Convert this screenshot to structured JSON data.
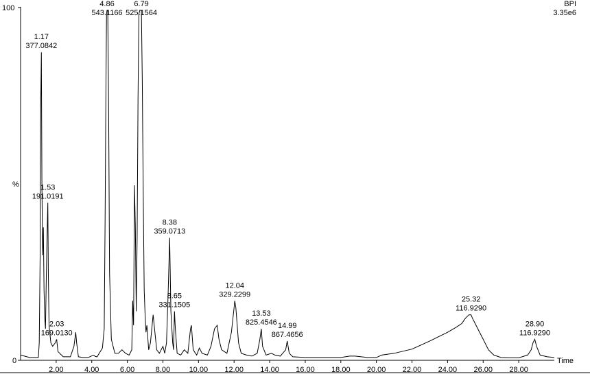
{
  "chart_data": {
    "type": "line",
    "trace_label": "BPI",
    "intensity_label": "3.35e6",
    "xlabel": "Time",
    "ylabel": "%",
    "xlim": [
      0.0,
      30.0
    ],
    "ylim": [
      0,
      100
    ],
    "x_ticks": [
      2,
      4,
      6,
      8,
      10,
      12,
      14,
      16,
      18,
      20,
      22,
      24,
      26,
      28
    ],
    "x_tick_labels": [
      "2.00",
      "4.00",
      "6.00",
      "8.00",
      "10.00",
      "12.00",
      "14.00",
      "16.00",
      "18.00",
      "20.00",
      "22.00",
      "24.00",
      "26.00",
      "28.00"
    ],
    "y_tick_labels": [
      "0",
      "%",
      "100"
    ],
    "peaks": [
      {
        "time": 1.17,
        "intensity": 88,
        "label_time": "1.17",
        "label_mz": "377.0842"
      },
      {
        "time": 1.53,
        "intensity": 45,
        "label_time": "1.53",
        "label_mz": "191.0191"
      },
      {
        "time": 2.03,
        "intensity": 6,
        "label_time": "2.03",
        "label_mz": "169.0130"
      },
      {
        "time": 4.86,
        "intensity": 100,
        "label_time": "4.86",
        "label_mz": "543.1166"
      },
      {
        "time": 6.79,
        "intensity": 100,
        "label_time": "6.79",
        "label_mz": "525.1564"
      },
      {
        "time": 8.38,
        "intensity": 35,
        "label_time": "8.38",
        "label_mz": "359.0713"
      },
      {
        "time": 8.65,
        "intensity": 14,
        "label_time": "8.65",
        "label_mz": "331.1505"
      },
      {
        "time": 12.04,
        "intensity": 17,
        "label_time": "12.04",
        "label_mz": "329.2299"
      },
      {
        "time": 13.53,
        "intensity": 9,
        "label_time": "13.53",
        "label_mz": "825.4546"
      },
      {
        "time": 14.99,
        "intensity": 5.5,
        "label_time": "14.99",
        "label_mz": "867.4656"
      },
      {
        "time": 25.32,
        "intensity": 13,
        "label_time": "25.32",
        "label_mz": "116.9290"
      },
      {
        "time": 28.9,
        "intensity": 6,
        "label_time": "28.90",
        "label_mz": "116.9290"
      }
    ],
    "series": [
      {
        "x": [
          0.0,
          0.5,
          1.0,
          1.05,
          1.1,
          1.13,
          1.17,
          1.2,
          1.24,
          1.28,
          1.32,
          1.36,
          1.4,
          1.45,
          1.5,
          1.53,
          1.56,
          1.6,
          1.7,
          1.8,
          1.95,
          2.03,
          2.1,
          2.4,
          2.8,
          3.0,
          3.1,
          3.15,
          3.25,
          3.5,
          3.8,
          4.1,
          4.2,
          4.3,
          4.6,
          4.7,
          4.75,
          4.8,
          4.83,
          4.86,
          4.9,
          4.95,
          5.0,
          5.1,
          5.3,
          5.5,
          5.7,
          5.9,
          6.1,
          6.25,
          6.3,
          6.35,
          6.4,
          6.45,
          6.5,
          6.55,
          6.6,
          6.65,
          6.7,
          6.75,
          6.79,
          6.84,
          6.9,
          6.95,
          7.0,
          7.05,
          7.1,
          7.2,
          7.3,
          7.45,
          7.55,
          7.65,
          7.8,
          8.0,
          8.1,
          8.2,
          8.3,
          8.38,
          8.45,
          8.55,
          8.6,
          8.65,
          8.7,
          8.8,
          9.0,
          9.2,
          9.4,
          9.55,
          9.6,
          9.7,
          9.9,
          10.05,
          10.2,
          10.5,
          10.7,
          10.9,
          11.05,
          11.15,
          11.3,
          11.6,
          11.85,
          12.0,
          12.04,
          12.1,
          12.25,
          12.4,
          12.7,
          13.0,
          13.3,
          13.45,
          13.53,
          13.6,
          13.8,
          14.1,
          14.3,
          14.6,
          14.9,
          14.99,
          15.1,
          15.3,
          16.0,
          17.0,
          18.0,
          18.5,
          18.8,
          19.5,
          20.0,
          20.3,
          21.0,
          22.0,
          23.0,
          24.0,
          24.5,
          24.8,
          25.0,
          25.1,
          25.2,
          25.32,
          25.4,
          25.5,
          25.7,
          26.0,
          26.3,
          26.6,
          27.0,
          27.5,
          28.0,
          28.5,
          28.7,
          28.8,
          28.9,
          29.0,
          29.2,
          29.6,
          30.0
        ],
        "y": [
          1.5,
          0.8,
          0.8,
          5,
          30,
          72,
          88,
          50,
          30,
          38,
          20,
          12,
          9,
          25,
          38,
          45,
          24,
          10,
          5,
          4,
          5,
          6,
          2.5,
          1,
          1,
          4,
          8,
          5,
          1,
          0.8,
          0.8,
          1.5,
          1.1,
          1,
          3.5,
          9,
          40,
          80,
          99,
          100,
          100,
          70,
          25,
          6,
          2,
          2,
          3,
          2,
          1.5,
          3,
          17,
          10,
          50,
          38,
          14,
          35,
          75,
          99,
          100,
          100,
          100,
          80,
          45,
          20,
          13,
          8,
          10,
          3,
          5,
          13,
          8,
          3,
          2,
          4,
          2,
          5,
          20,
          35,
          14,
          5,
          3,
          14,
          9,
          2,
          1.5,
          3,
          2,
          9,
          10,
          3,
          1.5,
          3.5,
          2,
          1.5,
          4,
          9,
          10,
          6,
          3,
          2,
          8,
          15,
          17,
          15,
          5,
          2,
          1.5,
          1.2,
          2,
          6,
          9,
          4,
          1.5,
          2,
          1.5,
          1.2,
          3,
          5.5,
          2,
          1,
          0.8,
          0.8,
          0.8,
          1.2,
          1.2,
          0.8,
          0.8,
          1.5,
          2,
          3.2,
          5.5,
          8,
          9.5,
          10.5,
          12,
          12.5,
          13,
          13,
          12,
          11,
          9,
          6,
          3,
          1.5,
          0.8,
          0.7,
          0.7,
          1.5,
          3,
          5,
          6,
          4,
          1.5,
          1,
          0.8
        ]
      }
    ],
    "grid": false,
    "legend": "none"
  }
}
